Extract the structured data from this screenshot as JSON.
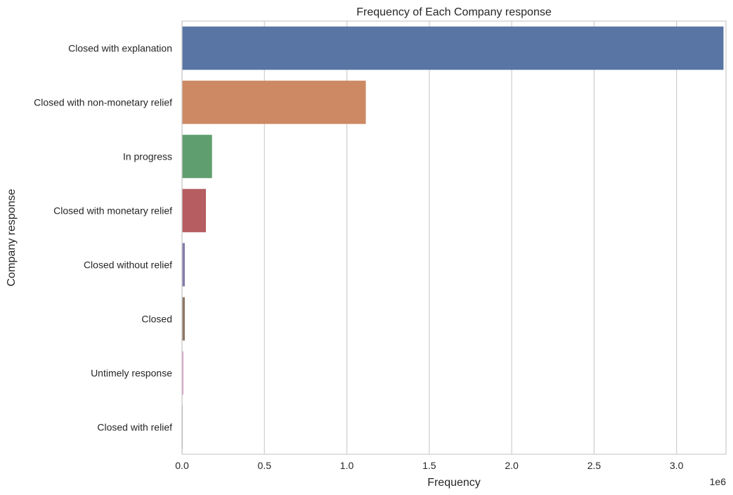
{
  "chart_data": {
    "type": "bar",
    "orientation": "horizontal",
    "title": "Frequency of Each Company response",
    "xlabel": "Frequency",
    "ylabel": "Company response",
    "x_scale_note": "1e6",
    "xlim": [
      0,
      3.3
    ],
    "xticks": [
      "0.0",
      "0.5",
      "1.0",
      "1.5",
      "2.0",
      "2.5",
      "3.0"
    ],
    "grid": "vertical",
    "categories": [
      "Closed with explanation",
      "Closed with non-monetary relief",
      "In progress",
      "Closed with monetary relief",
      "Closed without relief",
      "Closed",
      "Untimely response",
      "Closed with relief"
    ],
    "values": [
      3.285,
      1.115,
      0.182,
      0.145,
      0.017,
      0.017,
      0.008,
      0.004
    ],
    "colors": [
      "#5875a4",
      "#cc8963",
      "#5f9e6e",
      "#b55d60",
      "#857aab",
      "#8d7866",
      "#d095bf",
      "#8c8c8c"
    ]
  }
}
